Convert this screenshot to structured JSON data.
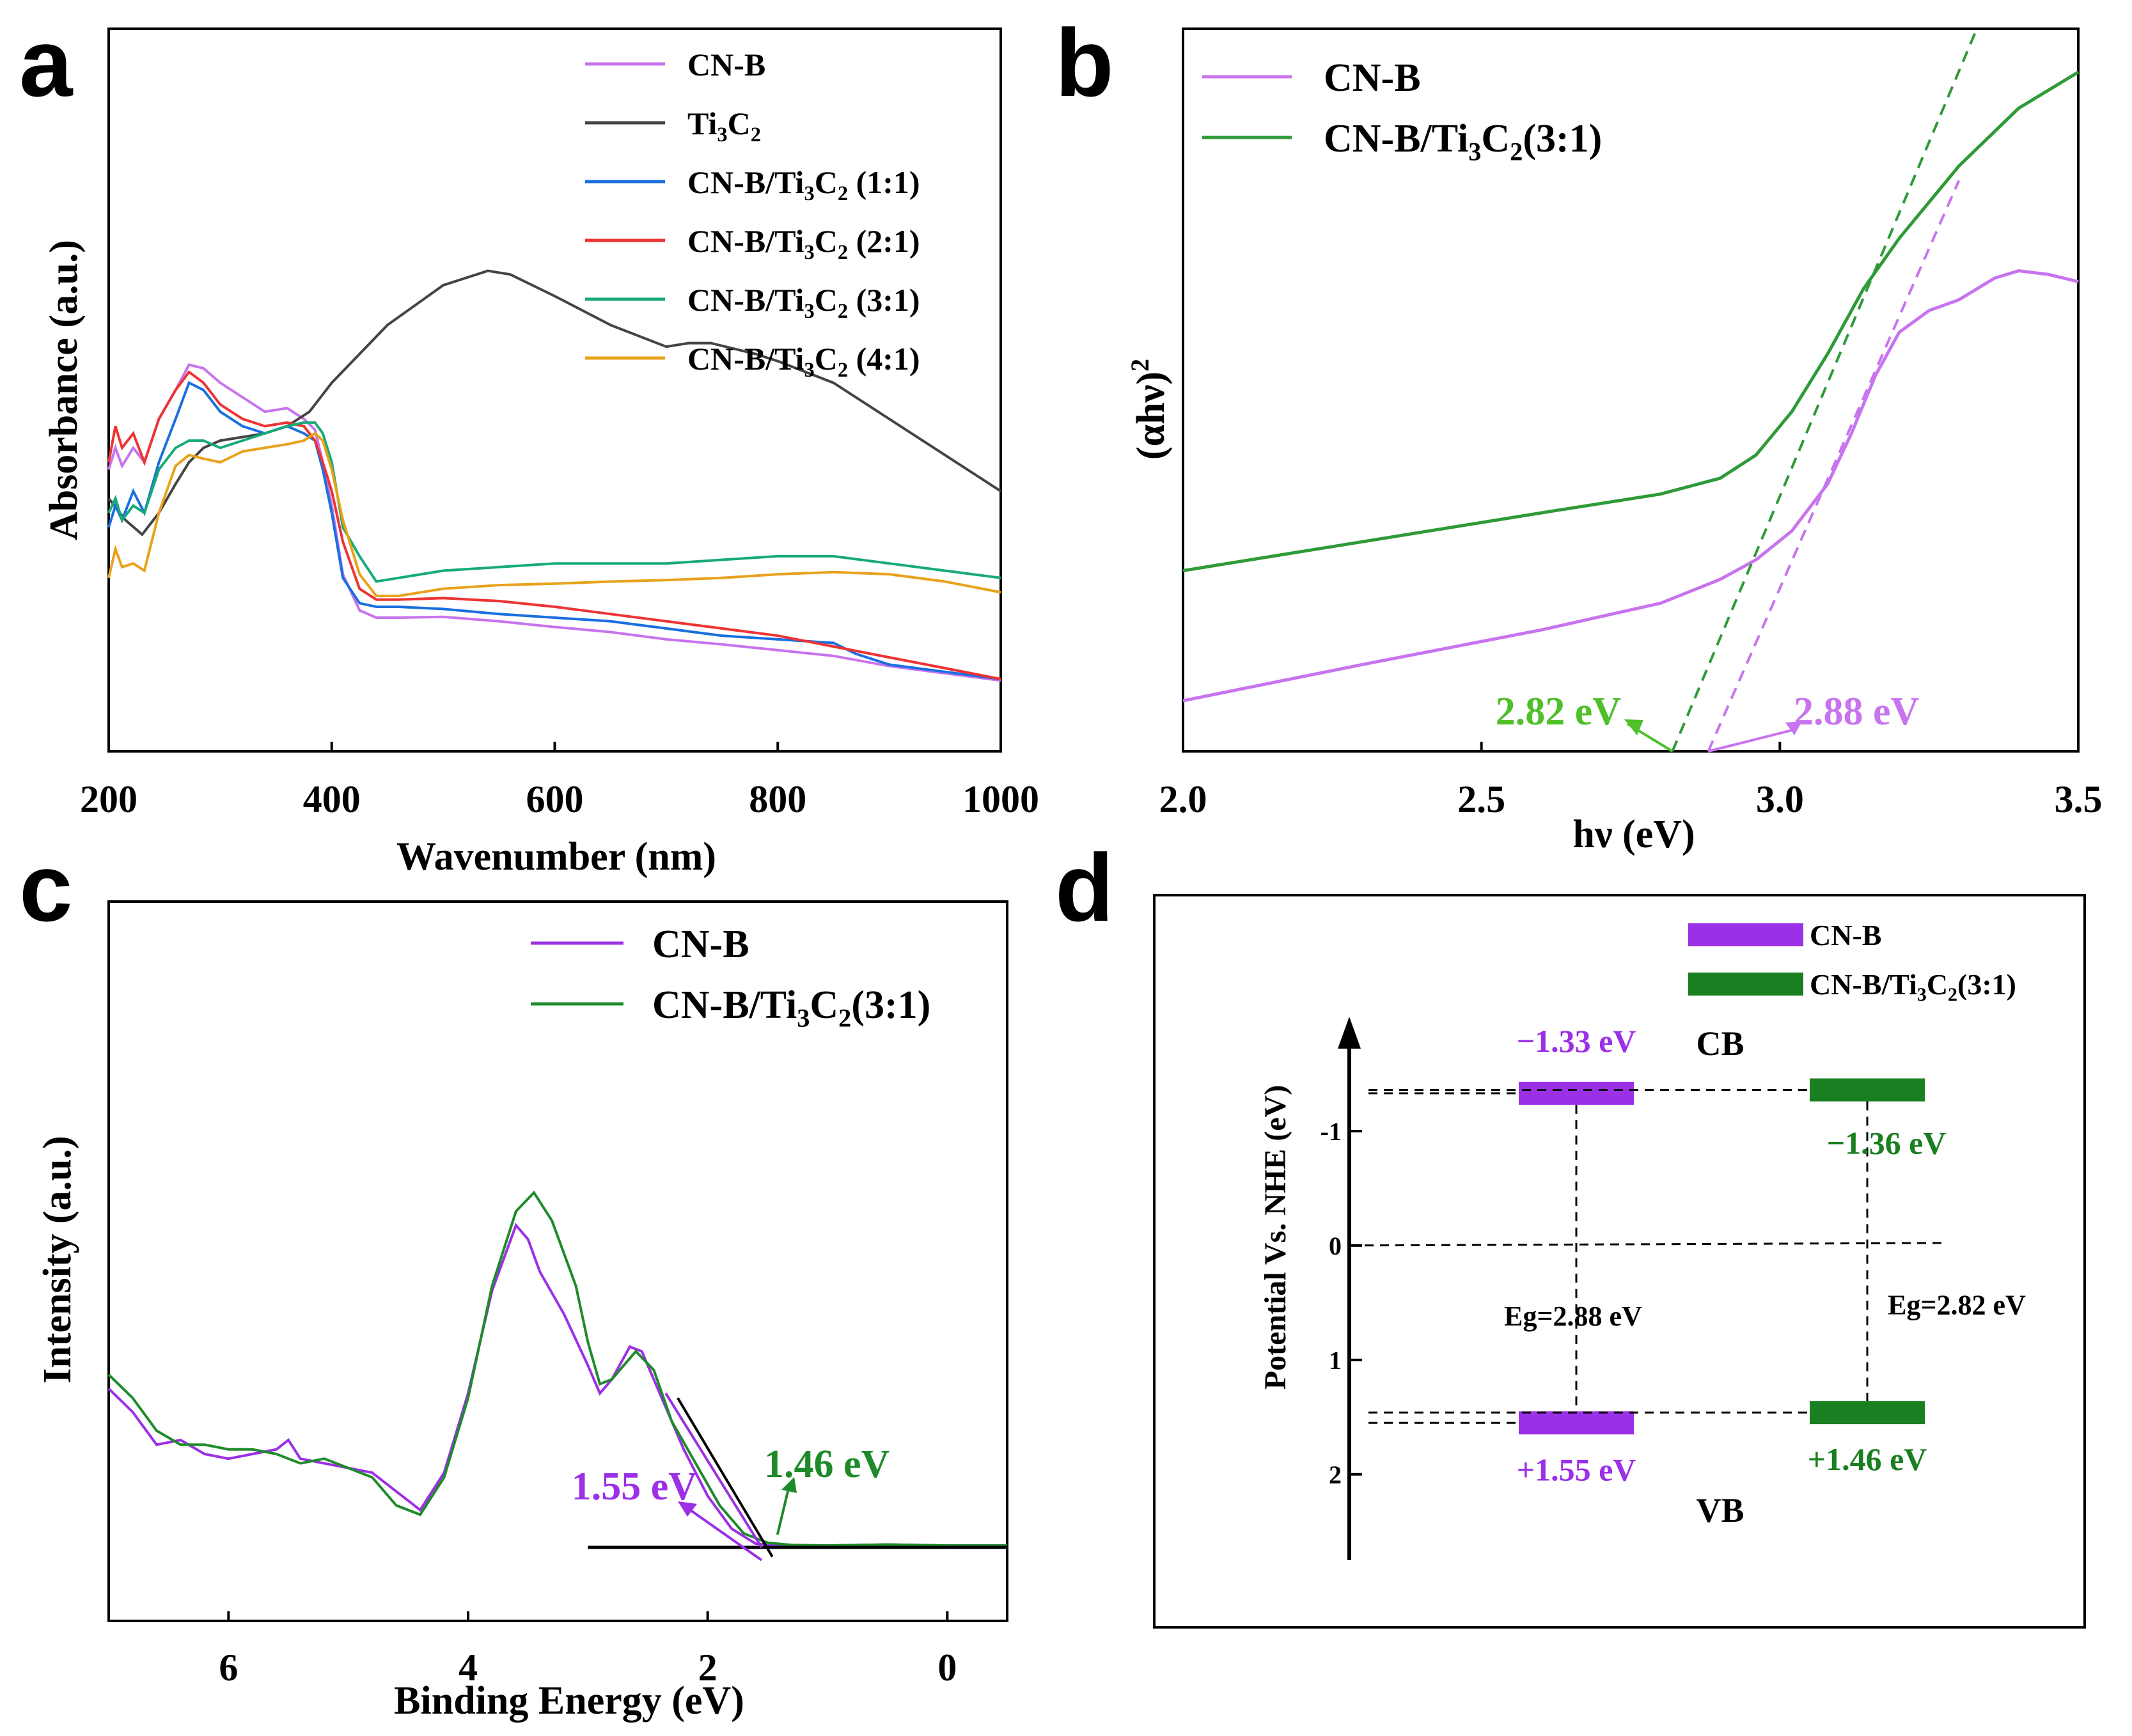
{
  "panels": {
    "a": "a",
    "b": "b",
    "c": "c",
    "d": "d"
  },
  "colors": {
    "cnb": "#c774ee",
    "cnb_strong": "#9b30e6",
    "ti3c2": "#444444",
    "r11": "#1a6fe0",
    "r21": "#ee3333",
    "r31": "#17aa78",
    "r41": "#e8a21c",
    "green_b": "#2e9a38",
    "green_c": "#1e8b2a",
    "green_d": "#1a7f20",
    "green_label": "#4fbf2a"
  },
  "chart_data": [
    {
      "id": "a",
      "type": "line",
      "xlabel": "Wavenumber (nm)",
      "ylabel": "Absorbance (a.u.)",
      "xlim": [
        200,
        1000
      ],
      "ylim": [
        0,
        1
      ],
      "xticks": [
        200,
        400,
        600,
        800,
        1000
      ],
      "xtick_labels": [
        "200",
        "400",
        "600",
        "800",
        "1000"
      ],
      "legend_position": "top-right",
      "series": [
        {
          "name": "CN-B",
          "label_main": "CN-B",
          "label_sub": "",
          "label_tail": "",
          "color": "#c774ee",
          "x": [
            200,
            206,
            212,
            222,
            232,
            245,
            260,
            272,
            285,
            300,
            320,
            340,
            360,
            375,
            385,
            392,
            400,
            410,
            425,
            440,
            460,
            500,
            550,
            600,
            650,
            700,
            750,
            800,
            850,
            900,
            950,
            1000
          ],
          "y": [
            0.39,
            0.42,
            0.395,
            0.42,
            0.4,
            0.46,
            0.5,
            0.535,
            0.53,
            0.51,
            0.49,
            0.47,
            0.475,
            0.46,
            0.445,
            0.4,
            0.34,
            0.245,
            0.195,
            0.185,
            0.185,
            0.186,
            0.18,
            0.172,
            0.165,
            0.155,
            0.148,
            0.14,
            0.132,
            0.118,
            0.108,
            0.098
          ]
        },
        {
          "name": "Ti3C2",
          "label_main": "Ti",
          "label_sub": "3",
          "label_tail": "C2",
          "color": "#444444",
          "x": [
            200,
            205,
            215,
            230,
            245,
            260,
            272,
            285,
            300,
            320,
            340,
            360,
            380,
            400,
            450,
            500,
            540,
            560,
            600,
            650,
            700,
            720,
            740,
            780,
            800,
            850,
            900,
            950,
            1000
          ],
          "y": [
            0.35,
            0.34,
            0.32,
            0.3,
            0.33,
            0.37,
            0.4,
            0.42,
            0.43,
            0.435,
            0.44,
            0.45,
            0.47,
            0.51,
            0.59,
            0.645,
            0.665,
            0.66,
            0.63,
            0.59,
            0.56,
            0.565,
            0.565,
            0.55,
            0.54,
            0.51,
            0.46,
            0.41,
            0.36
          ]
        },
        {
          "name": "CN-B/Ti3C2 (1:1)",
          "label_main": "CN-B/Ti",
          "label_sub": "3",
          "label_tail": "C2 (1:1)",
          "color": "#1a6fe0",
          "x": [
            200,
            206,
            212,
            222,
            232,
            245,
            260,
            272,
            285,
            300,
            320,
            340,
            360,
            375,
            385,
            392,
            400,
            410,
            425,
            440,
            460,
            500,
            550,
            600,
            650,
            700,
            750,
            800,
            850,
            870,
            900,
            950,
            1000
          ],
          "y": [
            0.31,
            0.34,
            0.32,
            0.36,
            0.33,
            0.4,
            0.46,
            0.51,
            0.5,
            0.47,
            0.45,
            0.44,
            0.45,
            0.44,
            0.43,
            0.39,
            0.33,
            0.24,
            0.205,
            0.2,
            0.2,
            0.197,
            0.19,
            0.185,
            0.18,
            0.17,
            0.16,
            0.155,
            0.15,
            0.135,
            0.12,
            0.11,
            0.1
          ]
        },
        {
          "name": "CN-B/Ti3C2 (2:1)",
          "label_main": "CN-B/Ti",
          "label_sub": "3",
          "label_tail": "C2 (2:1)",
          "color": "#ee3333",
          "x": [
            200,
            206,
            212,
            222,
            232,
            245,
            260,
            272,
            285,
            300,
            320,
            340,
            360,
            375,
            385,
            392,
            400,
            410,
            425,
            440,
            460,
            500,
            550,
            600,
            650,
            700,
            750,
            800,
            850,
            900,
            950,
            1000
          ],
          "y": [
            0.4,
            0.45,
            0.42,
            0.44,
            0.4,
            0.46,
            0.5,
            0.525,
            0.51,
            0.48,
            0.46,
            0.45,
            0.455,
            0.45,
            0.43,
            0.4,
            0.36,
            0.29,
            0.225,
            0.21,
            0.21,
            0.212,
            0.208,
            0.2,
            0.19,
            0.18,
            0.17,
            0.16,
            0.145,
            0.13,
            0.115,
            0.1
          ]
        },
        {
          "name": "CN-B/Ti3C2 (3:1)",
          "label_main": "CN-B/Ti",
          "label_sub": "3",
          "label_tail": "C2 (3:1)",
          "color": "#17aa78",
          "x": [
            200,
            206,
            212,
            222,
            232,
            245,
            260,
            272,
            285,
            300,
            320,
            340,
            360,
            375,
            385,
            392,
            400,
            410,
            425,
            440,
            460,
            500,
            550,
            600,
            650,
            700,
            750,
            800,
            850,
            900,
            950,
            1000
          ],
          "y": [
            0.33,
            0.35,
            0.32,
            0.34,
            0.33,
            0.39,
            0.42,
            0.43,
            0.43,
            0.42,
            0.43,
            0.44,
            0.45,
            0.455,
            0.455,
            0.44,
            0.4,
            0.31,
            0.27,
            0.235,
            0.24,
            0.25,
            0.255,
            0.26,
            0.26,
            0.26,
            0.265,
            0.27,
            0.27,
            0.26,
            0.25,
            0.24
          ]
        },
        {
          "name": "CN-B/Ti3C2 (4:1)",
          "label_main": "CN-B/Ti",
          "label_sub": "3",
          "label_tail": "C2 (4:1)",
          "color": "#e8a21c",
          "x": [
            200,
            206,
            212,
            222,
            232,
            245,
            260,
            272,
            285,
            300,
            320,
            340,
            360,
            375,
            385,
            392,
            400,
            410,
            425,
            440,
            460,
            500,
            550,
            600,
            650,
            700,
            750,
            800,
            850,
            900,
            950,
            1000
          ],
          "y": [
            0.24,
            0.28,
            0.255,
            0.26,
            0.25,
            0.33,
            0.395,
            0.41,
            0.405,
            0.4,
            0.415,
            0.42,
            0.425,
            0.43,
            0.44,
            0.43,
            0.39,
            0.32,
            0.245,
            0.215,
            0.215,
            0.225,
            0.23,
            0.232,
            0.235,
            0.237,
            0.24,
            0.245,
            0.248,
            0.245,
            0.235,
            0.22
          ]
        }
      ]
    },
    {
      "id": "b",
      "type": "line",
      "xlabel": "hν (eV)",
      "ylabel": "(αhν)",
      "ylabel_sup": "2",
      "xlim": [
        2.0,
        3.5
      ],
      "ylim": [
        0,
        1
      ],
      "xticks": [
        2.0,
        2.5,
        3.0,
        3.5
      ],
      "xtick_labels": [
        "2.0",
        "2.5",
        "3.0",
        "3.5"
      ],
      "legend_position": "top-left",
      "series": [
        {
          "name": "CN-B",
          "label_main": "CN-B",
          "label_sub": "",
          "label_tail": "",
          "color": "#c774ee",
          "x": [
            2.0,
            2.3,
            2.6,
            2.8,
            2.9,
            2.96,
            3.02,
            3.08,
            3.12,
            3.16,
            3.2,
            3.25,
            3.3,
            3.36,
            3.4,
            3.45,
            3.5
          ],
          "y": [
            0.07,
            0.12,
            0.168,
            0.205,
            0.238,
            0.265,
            0.305,
            0.37,
            0.44,
            0.52,
            0.58,
            0.61,
            0.625,
            0.655,
            0.665,
            0.66,
            0.65
          ]
        },
        {
          "name": "CN-B/Ti3C2(3:1)",
          "label_main": "CN-B/Ti",
          "label_sub": "3",
          "label_tail": "C2(3:1)",
          "color": "#2e9a38",
          "x": [
            2.0,
            2.3,
            2.6,
            2.8,
            2.9,
            2.96,
            3.02,
            3.08,
            3.14,
            3.2,
            3.3,
            3.4,
            3.5
          ],
          "y": [
            0.25,
            0.29,
            0.33,
            0.356,
            0.378,
            0.41,
            0.47,
            0.55,
            0.64,
            0.71,
            0.81,
            0.89,
            0.94
          ]
        }
      ],
      "tangents": [
        {
          "name": "CN-B tangent",
          "color": "#c774ee",
          "x": [
            2.88,
            3.3
          ],
          "y": [
            0.0,
            0.79
          ]
        },
        {
          "name": "CN-B/Ti3C2(3:1) tangent",
          "color": "#2e9a38",
          "x": [
            2.82,
            3.33
          ],
          "y": [
            0.0,
            1.0
          ]
        }
      ],
      "annotations": [
        {
          "text": "2.82 eV",
          "x": 2.82,
          "color": "#4fbf2a",
          "side": "left"
        },
        {
          "text": "2.88 eV",
          "x": 2.88,
          "color": "#c774ee",
          "side": "right"
        }
      ]
    },
    {
      "id": "c",
      "type": "line",
      "xlabel": "Binding Energy (eV)",
      "ylabel": "Intensity (a.u.)",
      "xlim": [
        7.0,
        -0.5
      ],
      "ylim": [
        0,
        1
      ],
      "xticks": [
        6,
        4,
        2,
        0
      ],
      "xtick_labels": [
        "6",
        "4",
        "2",
        "0"
      ],
      "legend_position": "top-right",
      "series": [
        {
          "name": "CN-B",
          "label_main": "CN-B",
          "label_sub": "",
          "label_tail": "",
          "color": "#9b30e6",
          "x": [
            7.0,
            6.8,
            6.6,
            6.4,
            6.2,
            6.0,
            5.8,
            5.6,
            5.5,
            5.4,
            5.2,
            5.0,
            4.8,
            4.6,
            4.4,
            4.2,
            4.0,
            3.8,
            3.6,
            3.5,
            3.4,
            3.2,
            3.0,
            2.9,
            2.8,
            2.65,
            2.55,
            2.4,
            2.2,
            2.0,
            1.8,
            1.6,
            1.4,
            1.0,
            0.5,
            0.0,
            -0.5
          ],
          "y": [
            0.34,
            0.29,
            0.22,
            0.23,
            0.2,
            0.19,
            0.2,
            0.21,
            0.23,
            0.19,
            0.18,
            0.17,
            0.16,
            0.12,
            0.08,
            0.16,
            0.33,
            0.55,
            0.69,
            0.66,
            0.59,
            0.5,
            0.39,
            0.33,
            0.36,
            0.43,
            0.42,
            0.33,
            0.21,
            0.11,
            0.04,
            0.008,
            0.004,
            0.004,
            0.006,
            0.004,
            0.004
          ]
        },
        {
          "name": "CN-B/Ti3C2(3:1)",
          "label_main": "CN-B/Ti",
          "label_sub": "3",
          "label_tail": "C2(3:1)",
          "color": "#1e8b2a",
          "x": [
            7.0,
            6.8,
            6.6,
            6.4,
            6.2,
            6.0,
            5.8,
            5.6,
            5.4,
            5.2,
            5.0,
            4.8,
            4.6,
            4.4,
            4.2,
            4.0,
            3.8,
            3.6,
            3.45,
            3.3,
            3.1,
            3.0,
            2.9,
            2.8,
            2.6,
            2.45,
            2.3,
            2.1,
            1.9,
            1.7,
            1.5,
            1.3,
            1.0,
            0.5,
            0.0,
            -0.5
          ],
          "y": [
            0.37,
            0.32,
            0.25,
            0.22,
            0.22,
            0.21,
            0.21,
            0.2,
            0.18,
            0.19,
            0.17,
            0.15,
            0.09,
            0.07,
            0.15,
            0.32,
            0.56,
            0.72,
            0.76,
            0.7,
            0.56,
            0.44,
            0.35,
            0.36,
            0.42,
            0.38,
            0.27,
            0.18,
            0.09,
            0.03,
            0.01,
            0.005,
            0.004,
            0.006,
            0.004,
            0.004
          ]
        }
      ],
      "baseline": {
        "x": [
          3.0,
          -0.5
        ],
        "y": [
          0.0,
          0.0
        ]
      },
      "tangents": [
        {
          "name": "CN-B tangent",
          "color": "#9b30e6",
          "x": [
            2.35,
            1.55
          ],
          "y": [
            0.33,
            0.0
          ]
        },
        {
          "name": "CN-B/Ti3C2(3:1) tangent",
          "color": "#000000",
          "x": [
            2.25,
            1.46
          ],
          "y": [
            0.32,
            -0.02
          ]
        }
      ],
      "annotations": [
        {
          "text": "1.55 eV",
          "x": 1.55,
          "color": "#9b30e6",
          "side": "left"
        },
        {
          "text": "1.46 eV",
          "x": 1.46,
          "color": "#1e8b2a",
          "side": "right"
        }
      ]
    },
    {
      "id": "d",
      "type": "diagram",
      "ylabel": "Potential Vs. NHE (eV)",
      "ylim": [
        -2.0,
        2.75
      ],
      "yticks": [
        -1,
        0,
        1,
        2
      ],
      "ytick_labels": [
        "-1",
        "0",
        "1",
        "2"
      ],
      "legend_position": "top-right",
      "materials": [
        {
          "name": "CN-B",
          "label_main": "CN-B",
          "label_sub": "",
          "label_tail": "",
          "color": "#9b30e6",
          "cb": -1.33,
          "vb": 1.55,
          "cb_label": "−1.33 eV",
          "vb_label": "+1.55 eV",
          "eg_label": "Eg=2.88 eV"
        },
        {
          "name": "CN-B/Ti3C2(3:1)",
          "label_main": "CN-B/Ti",
          "label_sub": "3",
          "label_tail": "C2(3:1)",
          "color": "#1a7f20",
          "cb": -1.36,
          "vb": 1.46,
          "cb_label": "−1.36 eV",
          "vb_label": "+1.46 eV",
          "eg_label": "Eg=2.82 eV"
        }
      ],
      "band_labels": {
        "cb": "CB",
        "vb": "VB"
      }
    }
  ]
}
